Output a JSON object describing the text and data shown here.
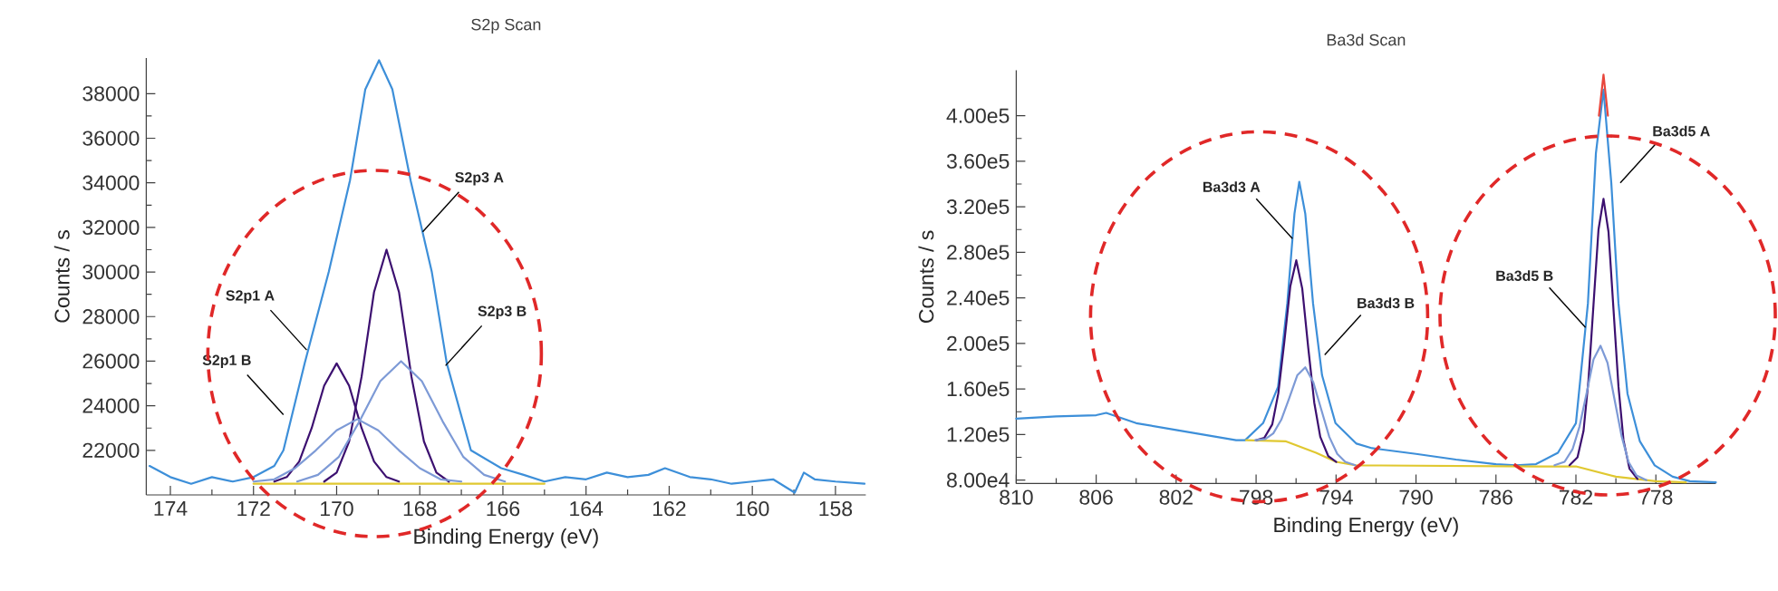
{
  "chart_data": [
    {
      "type": "line",
      "title": "S2p Scan",
      "xlabel": "Binding Energy (eV)",
      "ylabel": "Counts / s",
      "xlim": [
        174.58,
        157.27
      ],
      "ylim": [
        20000,
        39600
      ],
      "xticks": [
        174,
        172,
        170,
        168,
        166,
        164,
        162,
        160,
        158
      ],
      "yticks": [
        22000,
        24000,
        26000,
        28000,
        30000,
        32000,
        34000,
        36000,
        38000
      ],
      "marker": "none",
      "line_style": "solid",
      "series": [
        {
          "color": "#3d8fd9",
          "x": [
            174.5,
            174.0,
            173.5,
            173.0,
            172.5,
            172.0,
            171.5,
            171.28,
            170.77,
            170.19,
            169.68,
            169.31,
            168.98,
            168.66,
            168.22,
            167.71,
            167.35,
            166.77,
            166.04,
            165.5,
            165.0,
            164.5,
            164.0,
            163.5,
            163.0,
            162.5,
            162.1,
            161.5,
            161.0,
            160.5,
            160.0,
            159.5,
            158.98,
            158.76,
            158.5,
            158.0,
            157.3
          ],
          "values": [
            21300,
            20800,
            20500,
            20800,
            20600,
            20800,
            21300,
            22000,
            25900,
            30000,
            34100,
            38200,
            39500,
            38200,
            34100,
            30000,
            25900,
            22000,
            21200,
            20900,
            20600,
            20800,
            20700,
            21000,
            20800,
            20900,
            21200,
            20800,
            20700,
            20500,
            20600,
            20700,
            20100,
            21000,
            20700,
            20600,
            20500
          ]
        },
        {
          "color": "#e0c830",
          "x": [
            172.0,
            165.0
          ],
          "values": [
            20500,
            20500
          ]
        },
        {
          "color": "#3c1070",
          "x": [
            167.3,
            167.6,
            167.9,
            168.2,
            168.5,
            168.8,
            169.1,
            169.4,
            169.7,
            170.0,
            170.3
          ],
          "values": [
            20600,
            21000,
            22400,
            25300,
            29100,
            31000,
            29100,
            25300,
            22400,
            21000,
            20600
          ]
        },
        {
          "color": "#3c1070",
          "x": [
            168.5,
            168.8,
            169.1,
            169.4,
            169.7,
            170.0,
            170.3,
            170.6,
            170.9,
            171.2,
            171.5
          ],
          "values": [
            20600,
            20800,
            21500,
            23000,
            24900,
            25900,
            24900,
            23000,
            21500,
            20800,
            20600
          ]
        },
        {
          "color": "#7d9ad6",
          "x": [
            165.95,
            166.45,
            166.95,
            167.45,
            167.95,
            168.45,
            168.95,
            169.45,
            169.95,
            170.45,
            170.95
          ],
          "values": [
            20600,
            20900,
            21700,
            23300,
            25100,
            26000,
            25100,
            23300,
            21700,
            20900,
            20600
          ]
        },
        {
          "color": "#7d9ad6",
          "x": [
            167.0,
            167.5,
            168.0,
            168.5,
            169.0,
            169.5,
            170.0,
            170.5,
            171.0,
            171.5,
            172.0
          ],
          "values": [
            20600,
            20700,
            21200,
            22000,
            22900,
            23400,
            22900,
            22000,
            21200,
            20700,
            20600
          ]
        }
      ],
      "annotations": [
        {
          "text": "S2p3 A",
          "x": 167.93,
          "y": 31800
        },
        {
          "text": "S2p1 A",
          "x": 170.72,
          "y": 26500
        },
        {
          "text": "S2p3 B",
          "x": 167.38,
          "y": 25800
        },
        {
          "text": "S2p1 B",
          "x": 171.28,
          "y": 23600
        }
      ]
    },
    {
      "type": "line",
      "title": "Ba3d Scan",
      "xlabel": "Binding Energy (eV)",
      "ylabel": "Counts / s",
      "xlim": [
        810,
        775
      ],
      "ylim": [
        77000,
        440000
      ],
      "xticks": [
        810,
        806,
        802,
        798,
        794,
        790,
        786,
        782,
        778
      ],
      "yticks": [
        {
          "value": 80000,
          "label": "8.00e4"
        },
        {
          "value": 120000,
          "label": "1.20e5"
        },
        {
          "value": 160000,
          "label": "1.60e5"
        },
        {
          "value": 200000,
          "label": "2.00e5"
        },
        {
          "value": 240000,
          "label": "2.40e5"
        },
        {
          "value": 280000,
          "label": "2.80e5"
        },
        {
          "value": 320000,
          "label": "3.20e5"
        },
        {
          "value": 360000,
          "label": "3.60e5"
        },
        {
          "value": 400000,
          "label": "4.00e5"
        }
      ],
      "marker": "none",
      "line_style": "solid",
      "series": [
        {
          "color": "#3d8fd9",
          "x": [
            810,
            808,
            806,
            805.5,
            804,
            802,
            800,
            799,
            798.55,
            797.65,
            796.9,
            796.44,
            796.08,
            795.84,
            795.54,
            795.15,
            794.7,
            794.03,
            792.98,
            792.2,
            790,
            788,
            786,
            785,
            784,
            782.9,
            782.0,
            781.4,
            781.0,
            780.62,
            780.23,
            779.87,
            779.42,
            778.8,
            778.06,
            777.16,
            776.3,
            775.0
          ],
          "values": [
            134000,
            136000,
            137000,
            139000,
            130000,
            124000,
            118000,
            115000,
            115000,
            130000,
            162000,
            235000,
            314000,
            342000,
            314000,
            235000,
            172000,
            130000,
            112000,
            108000,
            103000,
            98000,
            94000,
            93000,
            94000,
            104000,
            130000,
            235000,
            367000,
            423000,
            341000,
            235000,
            156000,
            114000,
            93000,
            83000,
            79000,
            78000
          ]
        },
        {
          "color": "#e8463c",
          "x": [
            780.85,
            780.62,
            780.4
          ],
          "values": [
            400000,
            436000,
            400000
          ]
        },
        {
          "color": "#e0c830",
          "x": [
            798.5,
            796.5,
            795,
            794,
            793,
            784,
            782,
            780,
            778,
            776.5
          ],
          "values": [
            115000,
            114000,
            104000,
            96000,
            93000,
            92000,
            92000,
            83000,
            79000,
            78000
          ]
        },
        {
          "color": "#3c1070",
          "x": [
            797.99,
            797.59,
            797.19,
            796.89,
            796.59,
            796.29,
            795.99,
            795.69,
            795.39,
            795.09,
            794.79,
            794.39,
            793.99
          ],
          "values": [
            115000,
            117000,
            129000,
            156000,
            201000,
            250000,
            273000,
            248000,
            196000,
            148000,
            118000,
            101000,
            96000
          ]
        },
        {
          "color": "#7d9ad6",
          "x": [
            798.04,
            797.54,
            797.14,
            796.74,
            796.34,
            795.94,
            795.54,
            795.14,
            794.74,
            794.34,
            793.94,
            793.54,
            793.04
          ],
          "values": [
            115000,
            116000,
            121000,
            133000,
            152000,
            172000,
            179000,
            166000,
            142000,
            118000,
            103000,
            96000,
            93000
          ]
        },
        {
          "color": "#3c1070",
          "x": [
            782.32,
            781.92,
            781.62,
            781.37,
            781.12,
            780.87,
            780.62,
            780.37,
            780.12,
            779.87,
            779.62,
            779.32,
            778.92
          ],
          "values": [
            93000,
            100000,
            123000,
            168000,
            234000,
            300000,
            327000,
            298000,
            230000,
            162000,
            115000,
            90000,
            81000
          ]
        },
        {
          "color": "#7d9ad6",
          "x": [
            783.07,
            782.57,
            782.17,
            781.82,
            781.47,
            781.12,
            780.77,
            780.42,
            780.07,
            779.72,
            779.37,
            778.97,
            778.47
          ],
          "values": [
            93000,
            96000,
            107000,
            127000,
            156000,
            186000,
            198000,
            183000,
            151000,
            119000,
            96000,
            84000,
            80000
          ]
        }
      ],
      "annotations": [
        {
          "text": "Ba3d3 A",
          "x": 796.18,
          "y": 292000
        },
        {
          "text": "Ba3d3 B",
          "x": 794.57,
          "y": 190000
        },
        {
          "text": "Ba3d5 A",
          "x": 779.78,
          "y": 341000
        },
        {
          "text": "Ba3d5 B",
          "x": 781.52,
          "y": 214000
        }
      ]
    }
  ]
}
